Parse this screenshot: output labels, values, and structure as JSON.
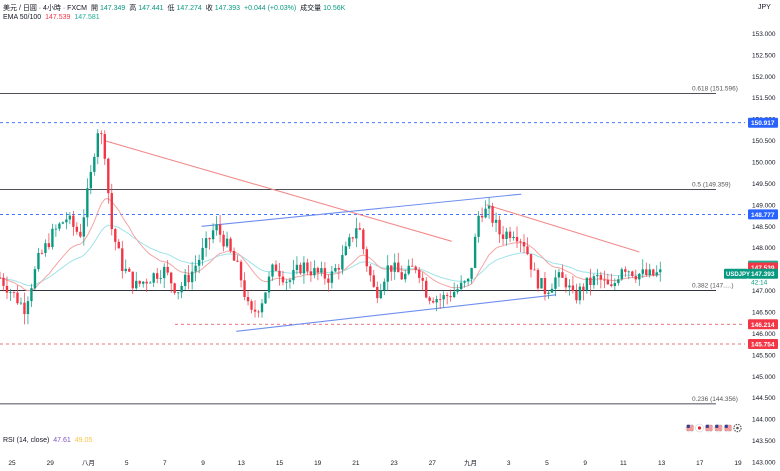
{
  "header": {
    "symbol": "美元 / 日圓 · 4小時 · FXCM",
    "open_label": "開",
    "open": "147.349",
    "high_label": "高",
    "high": "147.441",
    "low_label": "低",
    "low": "147.274",
    "close_label": "收",
    "close": "147.393",
    "change": "+0.044 (+0.03%)",
    "volume_label": "成交量",
    "volume": "10.56K",
    "currency": "JPY"
  },
  "ema_legend": {
    "label": "EMA 50/100",
    "ema50": "147.539",
    "ema100": "147.581"
  },
  "rsi_legend": {
    "label": "RSI (14, close)",
    "value1": "47.61",
    "value2": "49.05"
  },
  "colors": {
    "up": "#089981",
    "down": "#f23645",
    "ema50": "#f6a5a5",
    "ema100": "#9fe3e8",
    "downtrend": "#f28b8b",
    "channel": "#6f8ff0",
    "fib": "#131722",
    "support_dash": "#e0484f",
    "resistance_dash": "#2962ff"
  },
  "chart_data": {
    "type": "candlestick",
    "y_axis_ticks": [
      "153.000",
      "152.500",
      "152.000",
      "151.500",
      "151.000",
      "150.500",
      "150.000",
      "149.500",
      "149.000",
      "148.500",
      "148.000",
      "147.500",
      "147.000",
      "146.500",
      "146.000",
      "145.500",
      "145.000",
      "144.500",
      "144.000",
      "143.500",
      "143.000"
    ],
    "ylim": [
      143.0,
      153.5
    ],
    "x_axis_ticks": [
      "25",
      "29",
      "八月",
      "5",
      "7",
      "9",
      "13",
      "15",
      "19",
      "21",
      "23",
      "27",
      "九月",
      "3",
      "5",
      "9",
      "11",
      "13",
      "17",
      "19"
    ],
    "price_labels": [
      {
        "value": 150.917,
        "text": "150.917",
        "bg": "#2962ff"
      },
      {
        "value": 148.777,
        "text": "148.777",
        "bg": "#2962ff"
      },
      {
        "value": 147.581,
        "text": "147.581",
        "bg": "#22ab94"
      },
      {
        "value": 147.539,
        "text": "147.539",
        "bg": "#f23645"
      },
      {
        "value": 147.393,
        "text": "147.393",
        "bg": "#089981"
      },
      {
        "value": 146.214,
        "text": "146.214",
        "bg": "#f23645"
      },
      {
        "value": 145.754,
        "text": "145.754",
        "bg": "#f23645"
      }
    ],
    "symbol_tag": "USDJPY",
    "countdown": "42:14",
    "fib_levels": [
      {
        "label": "0.618 (151.596)",
        "value": 151.596
      },
      {
        "label": "0.5 (149.359)",
        "value": 149.359
      },
      {
        "label": "0.382 (147.…)",
        "value": 147.0
      },
      {
        "label": "0.236 (144.356)",
        "value": 144.356
      }
    ],
    "dashed_levels": [
      {
        "value": 150.917,
        "kind": "resistance"
      },
      {
        "value": 148.777,
        "kind": "resistance"
      },
      {
        "value": 146.214,
        "kind": "support"
      },
      {
        "value": 145.754,
        "kind": "support"
      }
    ],
    "trendlines": [
      {
        "kind": "downtrend",
        "from": [
          0.15,
          150.5
        ],
        "to": [
          0.65,
          148.15
        ]
      },
      {
        "kind": "downtrend",
        "from": [
          0.7,
          149.0
        ],
        "to": [
          0.92,
          147.9
        ]
      },
      {
        "kind": "channel_upper",
        "from": [
          0.29,
          148.5
        ],
        "to": [
          0.75,
          149.25
        ]
      },
      {
        "kind": "channel_lower",
        "from": [
          0.34,
          146.05
        ],
        "to": [
          0.8,
          146.9
        ]
      }
    ],
    "price_path": [
      [
        0.0,
        147.3
      ],
      [
        0.015,
        147.0
      ],
      [
        0.035,
        146.6
      ],
      [
        0.055,
        147.7
      ],
      [
        0.075,
        148.3
      ],
      [
        0.095,
        148.7
      ],
      [
        0.115,
        148.3
      ],
      [
        0.13,
        149.6
      ],
      [
        0.14,
        150.8
      ],
      [
        0.15,
        150.4
      ],
      [
        0.16,
        148.5
      ],
      [
        0.175,
        147.6
      ],
      [
        0.195,
        147.1
      ],
      [
        0.215,
        147.3
      ],
      [
        0.235,
        147.5
      ],
      [
        0.255,
        147.0
      ],
      [
        0.275,
        147.4
      ],
      [
        0.295,
        148.0
      ],
      [
        0.31,
        148.5
      ],
      [
        0.325,
        148.1
      ],
      [
        0.345,
        147.4
      ],
      [
        0.36,
        146.4
      ],
      [
        0.375,
        146.7
      ],
      [
        0.395,
        147.6
      ],
      [
        0.415,
        147.2
      ],
      [
        0.435,
        147.6
      ],
      [
        0.455,
        147.4
      ],
      [
        0.475,
        147.3
      ],
      [
        0.495,
        147.8
      ],
      [
        0.515,
        148.6
      ],
      [
        0.525,
        147.8
      ],
      [
        0.54,
        146.9
      ],
      [
        0.56,
        147.6
      ],
      [
        0.58,
        147.3
      ],
      [
        0.6,
        147.6
      ],
      [
        0.615,
        146.9
      ],
      [
        0.635,
        146.8
      ],
      [
        0.655,
        147.0
      ],
      [
        0.675,
        147.2
      ],
      [
        0.69,
        148.9
      ],
      [
        0.705,
        148.8
      ],
      [
        0.72,
        148.3
      ],
      [
        0.74,
        148.4
      ],
      [
        0.755,
        148.1
      ],
      [
        0.77,
        147.3
      ],
      [
        0.785,
        147.0
      ],
      [
        0.8,
        147.3
      ],
      [
        0.815,
        147.2
      ],
      [
        0.825,
        146.8
      ],
      [
        0.84,
        147.1
      ],
      [
        0.86,
        147.3
      ],
      [
        0.88,
        147.0
      ],
      [
        0.895,
        147.6
      ],
      [
        0.915,
        147.4
      ],
      [
        0.935,
        147.35
      ],
      [
        0.95,
        147.393
      ]
    ]
  },
  "icons": [
    "flag-icon-us",
    "flag-icon-jp",
    "flag-icon-us",
    "flag-icon-us",
    "flag-icon-us",
    "gear-icon"
  ]
}
